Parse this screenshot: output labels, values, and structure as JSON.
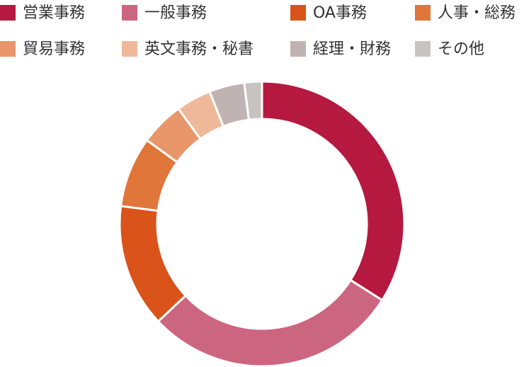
{
  "chart_data": {
    "type": "donut",
    "categories": [
      "営業事務",
      "一般事務",
      "OA事務",
      "人事・総務",
      "貿易事務",
      "英文事務・秘書",
      "経理・財務",
      "その他"
    ],
    "values": [
      34,
      29,
      14,
      8,
      5,
      4,
      4,
      2
    ],
    "colors": [
      "#b5193f",
      "#cc6680",
      "#d9531a",
      "#e0763a",
      "#e8966a",
      "#f0b89a",
      "#bfb4b2",
      "#c8c3c1"
    ],
    "legend": "top"
  }
}
